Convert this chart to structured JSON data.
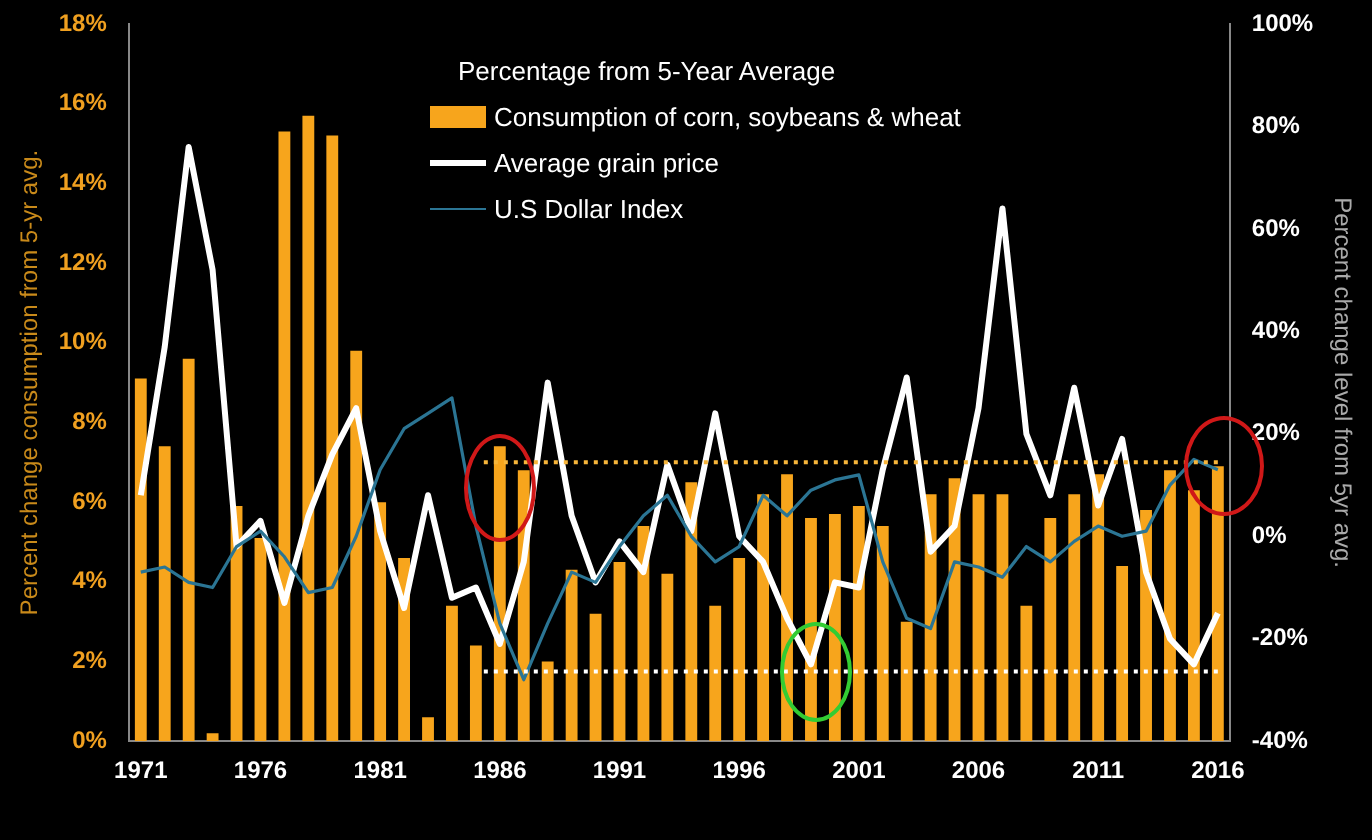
{
  "chart_data": {
    "type": "bar",
    "legend_title": "Percentage from 5-Year Average",
    "ylabel": "Percent change consumption from 5-yr avg.",
    "y2label": "Percent change level from 5yr avg.",
    "categories": [
      "1971",
      null,
      null,
      null,
      null,
      "1976",
      null,
      null,
      null,
      null,
      "1981",
      null,
      null,
      null,
      null,
      "1986",
      null,
      null,
      null,
      null,
      "1991",
      null,
      null,
      null,
      null,
      "1996",
      null,
      null,
      null,
      null,
      "2001",
      null,
      null,
      null,
      null,
      "2006",
      null,
      null,
      null,
      null,
      "2011",
      null,
      null,
      null,
      null,
      "2016"
    ],
    "series": [
      {
        "name": "Consumption of corn, soybeans & wheat",
        "color": "#f7a51c",
        "values": [
          9.1,
          7.4,
          9.6,
          0.2,
          5.9,
          5.1,
          15.3,
          15.7,
          15.2,
          9.8,
          6.0,
          4.6,
          0.6,
          3.4,
          2.4,
          7.4,
          6.8,
          2.0,
          4.3,
          3.2,
          4.5,
          5.4,
          4.2,
          6.5,
          3.4,
          4.6,
          6.2,
          6.7,
          5.6,
          5.7,
          5.9,
          5.4,
          3.0,
          6.2,
          6.6,
          6.2,
          6.2,
          3.4,
          5.6,
          6.2,
          6.7,
          4.4,
          5.8,
          6.8,
          6.3,
          6.9
        ]
      },
      {
        "name": "Average grain price",
        "type": "line",
        "axis": "y2",
        "color": "#ffffff",
        "values": [
          8,
          37,
          76,
          52,
          -2,
          3,
          -13,
          4,
          16,
          25,
          1,
          -14,
          8,
          -12,
          -10,
          -21,
          -5,
          30,
          4,
          -9,
          -1,
          -7,
          14,
          1,
          24,
          0,
          -5,
          -16,
          -25,
          -9,
          -10,
          13,
          31,
          -3,
          2,
          25,
          64,
          20,
          8,
          29,
          6,
          19,
          -7,
          -20,
          -25,
          -15
        ]
      },
      {
        "name": "U.S Dollar Index",
        "type": "line",
        "axis": "y2",
        "color": "#2b7594",
        "values": [
          -7,
          -6,
          -9,
          -10,
          -2,
          1,
          -4,
          -11,
          -10,
          0,
          13,
          21,
          24,
          27,
          2,
          -17,
          -28,
          -17,
          -7,
          -9,
          -2,
          4,
          8,
          0,
          -5,
          -2,
          8,
          4,
          9,
          11,
          12,
          -5,
          -16,
          -18,
          -5,
          -6,
          -8,
          -2,
          -5,
          -1,
          2,
          0,
          1,
          10,
          15,
          13
        ]
      }
    ],
    "ylim": [
      0,
      18
    ],
    "yticks": [
      {
        "value": 0,
        "label": "0%"
      },
      {
        "value": 2,
        "label": "2%"
      },
      {
        "value": 4,
        "label": "4%"
      },
      {
        "value": 6,
        "label": "6%"
      },
      {
        "value": 8,
        "label": "8%"
      },
      {
        "value": 10,
        "label": "10%"
      },
      {
        "value": 12,
        "label": "12%"
      },
      {
        "value": 14,
        "label": "14%"
      },
      {
        "value": 16,
        "label": "16%"
      },
      {
        "value": 18,
        "label": "18%"
      }
    ],
    "y2lim": [
      -40,
      100
    ],
    "y2ticks": [
      {
        "value": -40,
        "label": "-40%"
      },
      {
        "value": -20,
        "label": "-20%"
      },
      {
        "value": 0,
        "label": "0%"
      },
      {
        "value": 20,
        "label": "20%"
      },
      {
        "value": 40,
        "label": "40%"
      },
      {
        "value": 60,
        "label": "60%"
      },
      {
        "value": 80,
        "label": "80%"
      },
      {
        "value": 100,
        "label": "100%"
      }
    ],
    "ref_lines": [
      {
        "axis": "y",
        "value": 7.0,
        "color": "#f7b53a",
        "line_style": "dotted"
      },
      {
        "axis": "y",
        "value": 1.75,
        "color": "#ffffff",
        "line_style": "dotted"
      }
    ],
    "grid": false,
    "legend": "top",
    "marker": "none",
    "line_style": "solid"
  }
}
